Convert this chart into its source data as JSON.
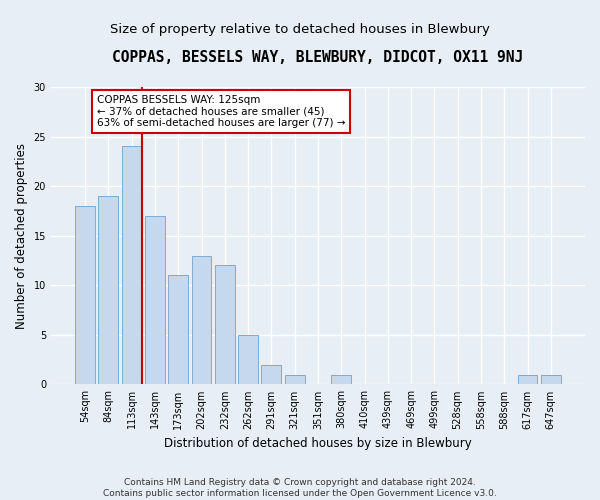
{
  "title": "COPPAS, BESSELS WAY, BLEWBURY, DIDCOT, OX11 9NJ",
  "subtitle": "Size of property relative to detached houses in Blewbury",
  "xlabel": "Distribution of detached houses by size in Blewbury",
  "ylabel": "Number of detached properties",
  "categories": [
    "54sqm",
    "84sqm",
    "113sqm",
    "143sqm",
    "173sqm",
    "202sqm",
    "232sqm",
    "262sqm",
    "291sqm",
    "321sqm",
    "351sqm",
    "380sqm",
    "410sqm",
    "439sqm",
    "469sqm",
    "499sqm",
    "528sqm",
    "558sqm",
    "588sqm",
    "617sqm",
    "647sqm"
  ],
  "values": [
    18,
    19,
    24,
    17,
    11,
    13,
    12,
    5,
    2,
    1,
    0,
    1,
    0,
    0,
    0,
    0,
    0,
    0,
    0,
    1,
    1
  ],
  "bar_color": "#c5d8ee",
  "bar_edge_color": "#7aadd4",
  "vline_color": "#cc0000",
  "vline_x_index": 2,
  "annotation_text": "COPPAS BESSELS WAY: 125sqm\n← 37% of detached houses are smaller (45)\n63% of semi-detached houses are larger (77) →",
  "annotation_box_facecolor": "#ffffff",
  "annotation_box_edgecolor": "#cc0000",
  "ylim": [
    0,
    30
  ],
  "yticks": [
    0,
    5,
    10,
    15,
    20,
    25,
    30
  ],
  "fig_bg": "#e8eef5",
  "plot_bg": "#e8eef5",
  "grid_color": "#ffffff",
  "footer": "Contains HM Land Registry data © Crown copyright and database right 2024.\nContains public sector information licensed under the Open Government Licence v3.0.",
  "title_fontsize": 10.5,
  "subtitle_fontsize": 9.5,
  "ylabel_fontsize": 8.5,
  "xlabel_fontsize": 8.5,
  "tick_fontsize": 7,
  "annot_fontsize": 7.5,
  "footer_fontsize": 6.5
}
